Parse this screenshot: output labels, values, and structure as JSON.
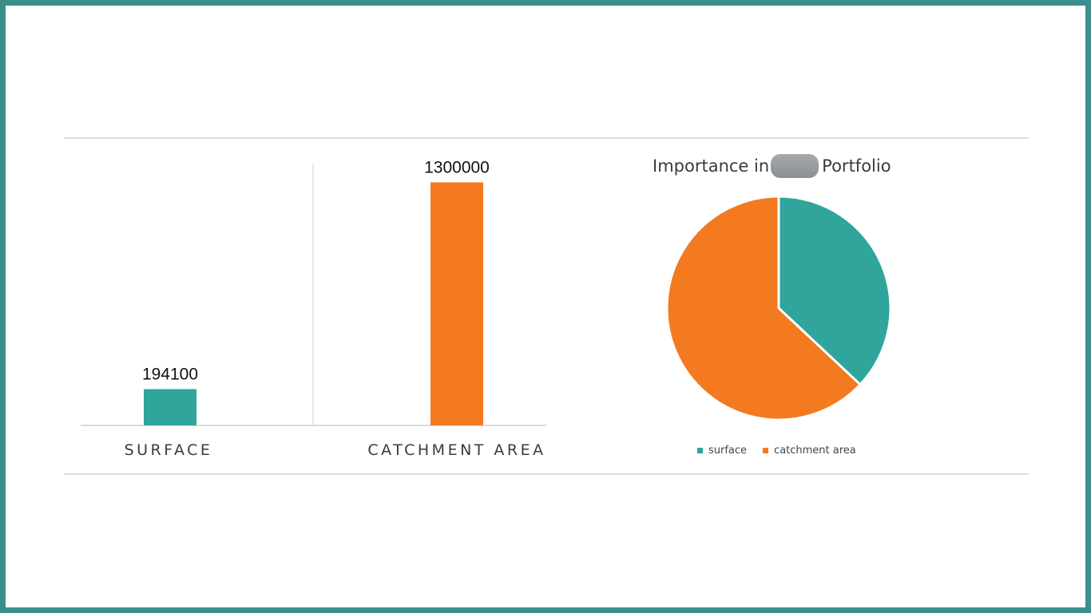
{
  "colors": {
    "surface": "#2fa59c",
    "catchment": "#f47a20",
    "border": "#3a8f8c"
  },
  "chart_data": [
    {
      "type": "bar",
      "categories": [
        "SURFACE",
        "CATCHMENT AREA"
      ],
      "values": [
        194100,
        1300000
      ],
      "data_labels": [
        "194100",
        "1300000"
      ],
      "ylim": [
        0,
        1400000
      ]
    },
    {
      "type": "pie",
      "title_before": "Importance in",
      "title_after": "Portfolio",
      "labels": [
        "surface",
        "catchment area"
      ],
      "values": [
        37,
        63
      ],
      "legend": "bottom"
    }
  ]
}
